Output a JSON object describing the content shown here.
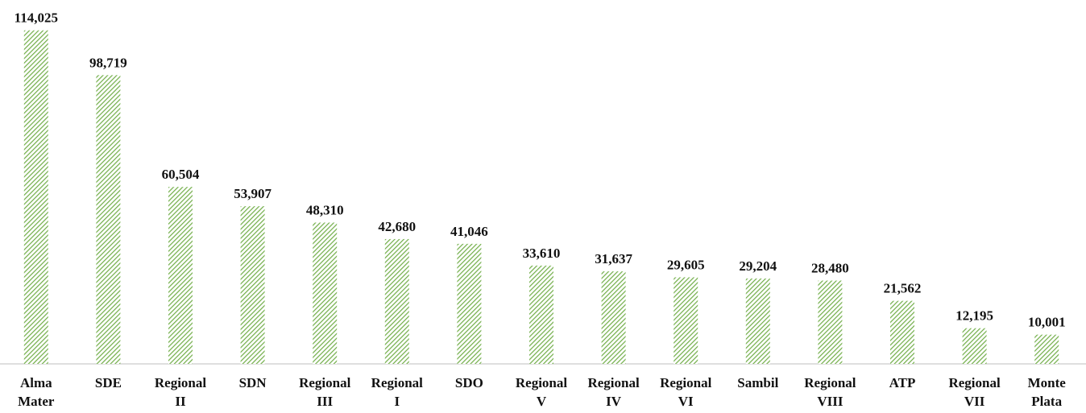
{
  "chart_data": {
    "type": "bar",
    "categories": [
      "Alma Mater",
      "SDE",
      "Regional II",
      "SDN",
      "Regional III",
      "Regional I",
      "SDO",
      "Regional V",
      "Regional IV",
      "Regional VI",
      "Sambil",
      "Regional VIII",
      "ATP",
      "Regional VII",
      "Monte Plata"
    ],
    "values": [
      114025,
      98719,
      60504,
      53907,
      48310,
      42680,
      41046,
      33610,
      31637,
      29605,
      29204,
      28480,
      21562,
      12195,
      10001
    ],
    "value_labels": [
      "114,025",
      "98,719",
      "60,504",
      "53,907",
      "48,310",
      "42,680",
      "41,046",
      "33,610",
      "31,637",
      "29,605",
      "29,204",
      "28,480",
      "21,562",
      "12,195",
      "10,001"
    ],
    "color": "#70ad47",
    "ylim": [
      0,
      120000
    ]
  }
}
